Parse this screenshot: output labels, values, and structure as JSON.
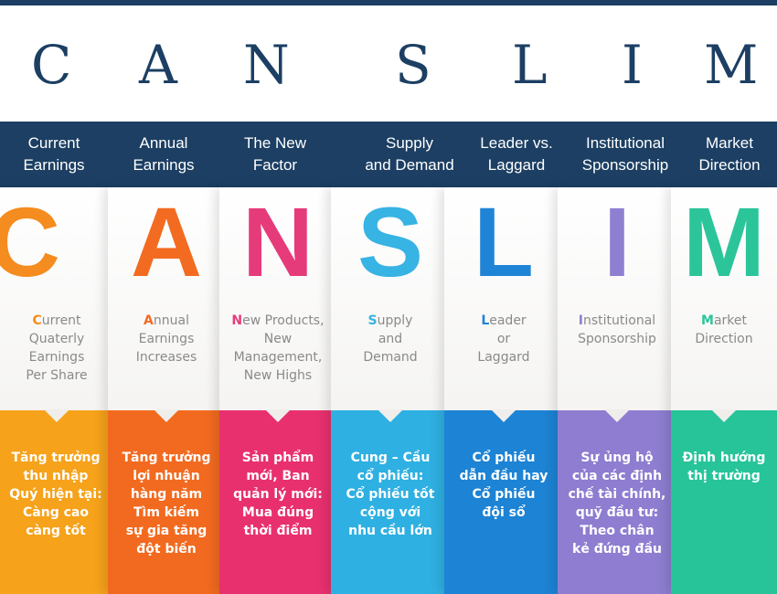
{
  "title_letters": [
    "C",
    "A",
    "N",
    "S",
    "L",
    "I",
    "M"
  ],
  "headers": [
    "Current\nEarnings",
    "Annual\nEarnings",
    "The New\nFactor",
    "Supply\nand Demand",
    "Leader vs.\nLaggard",
    "Institutional\nSponsorship",
    "Market\nDirection"
  ],
  "columns": [
    {
      "letter": "C",
      "color": "#f58c1f",
      "desc_first": "C",
      "desc_rest": "urrent\nQuaterly\nEarnings\nPer Share",
      "panel_color": "#f6a21b",
      "viet": "Tăng trưởng\nthu nhập\nQuý hiện tại:\nCàng cao\ncàng tốt"
    },
    {
      "letter": "A",
      "color": "#f26b21",
      "desc_first": "A",
      "desc_rest": "nnual\nEarnings\nIncreases",
      "panel_color": "#f26a1f",
      "viet": "Tăng trưởng\nlợi nhuận\nhàng năm\nTìm kiếm\nsự gia tăng\nđột biến"
    },
    {
      "letter": "N",
      "color": "#e63b7a",
      "desc_first": "N",
      "desc_rest": "ew Products,\nNew\nManagement,\nNew Highs",
      "panel_color": "#e8306f",
      "viet": "Sản phẩm\nmới, Ban\nquản lý mới:\nMua đúng\nthời điểm"
    },
    {
      "letter": "S",
      "color": "#37b3e4",
      "desc_first": "S",
      "desc_rest": "upply\nand\nDemand",
      "panel_color": "#2fb0e2",
      "viet": "Cung – Cầu\ncổ phiếu:\nCổ phiếu tốt\ncộng với\nnhu cầu lớn"
    },
    {
      "letter": "L",
      "color": "#1f84d6",
      "desc_first": "L",
      "desc_rest": "eader\nor\nLaggard",
      "panel_color": "#1d83d4",
      "viet": "Cổ phiếu\ndẫn đầu hay\nCổ phiếu\nđội sổ"
    },
    {
      "letter": "I",
      "color": "#8f7fd0",
      "desc_first": "I",
      "desc_rest": "nstitutional\nSponsorship",
      "panel_color": "#8e7dd0",
      "viet": "Sự ủng hộ\ncủa các định\nchế tài chính,\nquỹ đầu tư:\nTheo chân\nkẻ đứng đầu"
    },
    {
      "letter": "M",
      "color": "#2cc59a",
      "desc_first": "M",
      "desc_rest": "arket\nDirection",
      "panel_color": "#27c49a",
      "viet": "Định hướng\nthị trường"
    }
  ]
}
